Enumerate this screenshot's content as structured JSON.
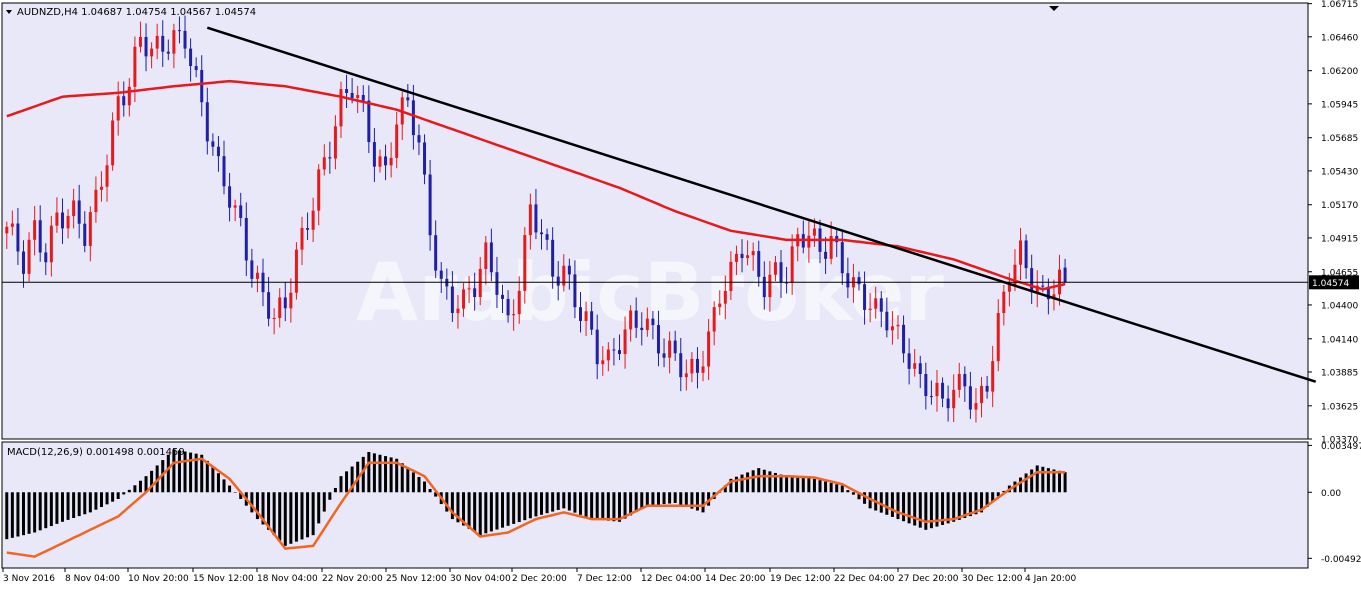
{
  "header": {
    "symbol_line": "AUDNZD,H4  1.04687 1.04754 1.04567 1.04574",
    "macd_label": "MACD(12,26,9) 0.001498 0.001459",
    "watermark": "ArabicBroker"
  },
  "colors": {
    "background": "#E8E8F8",
    "bull_candle": "#E8191B",
    "bear_candle": "#1F1FA8",
    "moving_average": "#E8191B",
    "trendline": "#000000",
    "macd_histogram": "#000000",
    "macd_signal": "#F26522",
    "price_tag": "#000000"
  },
  "chart_data": [
    {
      "type": "candlestick",
      "symbol": "AUDNZD",
      "timeframe": "H4",
      "ohlc_last": {
        "open": 1.04687,
        "high": 1.04754,
        "low": 1.04567,
        "close": 1.04574
      },
      "current_price": "1.04574",
      "ylim": [
        1.0337,
        1.0672
      ],
      "y_ticks": [
        "1.06715",
        "1.06460",
        "1.06200",
        "1.05945",
        "1.05685",
        "1.05430",
        "1.05170",
        "1.04915",
        "1.04655",
        "1.04400",
        "1.04140",
        "1.03885",
        "1.03625",
        "1.03370"
      ],
      "x_ticks": [
        "3 Nov 2016",
        "8 Nov 04:00",
        "10 Nov 20:00",
        "15 Nov 12:00",
        "18 Nov 04:00",
        "22 Nov 20:00",
        "25 Nov 12:00",
        "30 Nov 04:00",
        "2 Dec 20:00",
        "7 Dec 12:00",
        "12 Dec 04:00",
        "14 Dec 20:00",
        "19 Dec 12:00",
        "22 Dec 04:00",
        "27 Dec 20:00",
        "30 Dec 12:00",
        "4 Jan 20:00"
      ],
      "close_path": [
        [
          0,
          1.0495
        ],
        [
          3,
          1.047
        ],
        [
          5,
          1.05
        ],
        [
          7,
          1.0485
        ],
        [
          9,
          1.051
        ],
        [
          12,
          1.0505
        ],
        [
          14,
          1.049
        ],
        [
          16,
          1.052
        ],
        [
          18,
          1.056
        ],
        [
          20,
          1.06
        ],
        [
          22,
          1.061
        ],
        [
          24,
          1.064
        ],
        [
          26,
          1.063
        ],
        [
          28,
          1.064
        ],
        [
          30,
          1.065
        ],
        [
          32,
          1.065
        ],
        [
          34,
          1.061
        ],
        [
          36,
          1.057
        ],
        [
          38,
          1.054
        ],
        [
          40,
          1.0525
        ],
        [
          42,
          1.0505
        ],
        [
          44,
          1.047
        ],
        [
          46,
          1.0445
        ],
        [
          48,
          1.0425
        ],
        [
          50,
          1.0435
        ],
        [
          52,
          1.048
        ],
        [
          54,
          1.051
        ],
        [
          56,
          1.054
        ],
        [
          58,
          1.056
        ],
        [
          60,
          1.059
        ],
        [
          62,
          1.0605
        ],
        [
          64,
          1.059
        ],
        [
          66,
          1.056
        ],
        [
          68,
          1.0545
        ],
        [
          70,
          1.058
        ],
        [
          72,
          1.059
        ],
        [
          74,
          1.056
        ],
        [
          76,
          1.05
        ],
        [
          78,
          1.046
        ],
        [
          80,
          1.0445
        ],
        [
          82,
          1.044
        ],
        [
          84,
          1.045
        ],
        [
          86,
          1.0475
        ],
        [
          88,
          1.046
        ],
        [
          90,
          1.043
        ],
        [
          92,
          1.046
        ],
        [
          94,
          1.051
        ],
        [
          96,
          1.049
        ],
        [
          98,
          1.046
        ],
        [
          100,
          1.047
        ],
        [
          102,
          1.045
        ],
        [
          104,
          1.043
        ],
        [
          106,
          1.04
        ],
        [
          108,
          1.039
        ],
        [
          110,
          1.041
        ],
        [
          112,
          1.043
        ],
        [
          114,
          1.0435
        ],
        [
          116,
          1.042
        ],
        [
          118,
          1.04
        ],
        [
          120,
          1.0395
        ],
        [
          122,
          1.0385
        ],
        [
          124,
          1.0395
        ],
        [
          126,
          1.042
        ],
        [
          128,
          1.045
        ],
        [
          130,
          1.046
        ],
        [
          132,
          1.048
        ],
        [
          134,
          1.047
        ],
        [
          136,
          1.046
        ],
        [
          138,
          1.047
        ],
        [
          140,
          1.0465
        ],
        [
          142,
          1.0485
        ],
        [
          144,
          1.049
        ],
        [
          146,
          1.048
        ],
        [
          148,
          1.0495
        ],
        [
          150,
          1.0475
        ],
        [
          152,
          1.0455
        ],
        [
          154,
          1.044
        ],
        [
          156,
          1.043
        ],
        [
          158,
          1.043
        ],
        [
          160,
          1.042
        ],
        [
          162,
          1.0405
        ],
        [
          164,
          1.038
        ],
        [
          166,
          1.037
        ],
        [
          168,
          1.036
        ],
        [
          170,
          1.0375
        ],
        [
          172,
          1.0385
        ],
        [
          174,
          1.0365
        ],
        [
          176,
          1.038
        ],
        [
          178,
          1.042
        ],
        [
          180,
          1.046
        ],
        [
          182,
          1.048
        ],
        [
          184,
          1.0465
        ],
        [
          186,
          1.045
        ],
        [
          188,
          1.0455
        ],
        [
          190,
          1.0457
        ]
      ],
      "moving_average_path": [
        [
          0,
          1.0585
        ],
        [
          10,
          1.06
        ],
        [
          20,
          1.0603
        ],
        [
          30,
          1.0608
        ],
        [
          40,
          1.0612
        ],
        [
          50,
          1.0608
        ],
        [
          60,
          1.06
        ],
        [
          70,
          1.059
        ],
        [
          80,
          1.0575
        ],
        [
          90,
          1.056
        ],
        [
          100,
          1.0545
        ],
        [
          110,
          1.053
        ],
        [
          120,
          1.0512
        ],
        [
          130,
          1.0497
        ],
        [
          140,
          1.049
        ],
        [
          150,
          1.049
        ],
        [
          160,
          1.0485
        ],
        [
          170,
          1.0475
        ],
        [
          180,
          1.046
        ],
        [
          186,
          1.0452
        ],
        [
          190,
          1.0456
        ]
      ],
      "trendline": {
        "from": [
          36,
          1.0653
        ],
        "to": [
          235,
          1.0381
        ]
      },
      "bar_count": 235
    },
    {
      "type": "macd",
      "label": "MACD(12,26,9)",
      "main": 0.001498,
      "signal": 0.001459,
      "ylim": [
        -0.00565,
        0.00375
      ],
      "y_ticks": [
        "0.003497",
        "0.00",
        "-0.004928"
      ],
      "histogram_path": [
        [
          0,
          -0.0035
        ],
        [
          5,
          -0.003
        ],
        [
          10,
          -0.0022
        ],
        [
          15,
          -0.0015
        ],
        [
          20,
          -0.0005
        ],
        [
          25,
          0.0012
        ],
        [
          30,
          0.0032
        ],
        [
          35,
          0.0028
        ],
        [
          40,
          0.0005
        ],
        [
          45,
          -0.002
        ],
        [
          50,
          -0.004
        ],
        [
          55,
          -0.0032
        ],
        [
          60,
          0.0012
        ],
        [
          65,
          0.003
        ],
        [
          70,
          0.0025
        ],
        [
          75,
          0.0008
        ],
        [
          80,
          -0.002
        ],
        [
          85,
          -0.0032
        ],
        [
          90,
          -0.0025
        ],
        [
          95,
          -0.0018
        ],
        [
          100,
          -0.0012
        ],
        [
          105,
          -0.002
        ],
        [
          110,
          -0.0022
        ],
        [
          115,
          -0.001
        ],
        [
          120,
          -0.0008
        ],
        [
          125,
          -0.0015
        ],
        [
          130,
          0.001
        ],
        [
          135,
          0.0018
        ],
        [
          140,
          0.0012
        ],
        [
          145,
          0.001
        ],
        [
          150,
          0.0005
        ],
        [
          155,
          -0.0012
        ],
        [
          160,
          -0.002
        ],
        [
          165,
          -0.0028
        ],
        [
          170,
          -0.0022
        ],
        [
          175,
          -0.0015
        ],
        [
          180,
          0.0005
        ],
        [
          185,
          0.002
        ],
        [
          190,
          0.0015
        ]
      ],
      "signal_path": [
        [
          0,
          -0.0045
        ],
        [
          5,
          -0.0048
        ],
        [
          10,
          -0.0038
        ],
        [
          15,
          -0.0028
        ],
        [
          20,
          -0.0018
        ],
        [
          25,
          0.0
        ],
        [
          30,
          0.0022
        ],
        [
          35,
          0.0025
        ],
        [
          40,
          0.001
        ],
        [
          45,
          -0.0015
        ],
        [
          50,
          -0.0042
        ],
        [
          55,
          -0.004
        ],
        [
          60,
          -0.0008
        ],
        [
          65,
          0.0022
        ],
        [
          70,
          0.0022
        ],
        [
          75,
          0.0012
        ],
        [
          80,
          -0.0015
        ],
        [
          85,
          -0.0033
        ],
        [
          90,
          -0.003
        ],
        [
          95,
          -0.002
        ],
        [
          100,
          -0.0015
        ],
        [
          105,
          -0.002
        ],
        [
          110,
          -0.002
        ],
        [
          115,
          -0.001
        ],
        [
          120,
          -0.001
        ],
        [
          125,
          -0.001
        ],
        [
          130,
          0.0008
        ],
        [
          135,
          0.0012
        ],
        [
          140,
          0.0012
        ],
        [
          145,
          0.0011
        ],
        [
          150,
          0.0006
        ],
        [
          155,
          -0.0005
        ],
        [
          160,
          -0.0015
        ],
        [
          165,
          -0.0022
        ],
        [
          170,
          -0.002
        ],
        [
          175,
          -0.0013
        ],
        [
          180,
          0.0002
        ],
        [
          185,
          0.0015
        ],
        [
          190,
          0.0015
        ]
      ]
    }
  ]
}
